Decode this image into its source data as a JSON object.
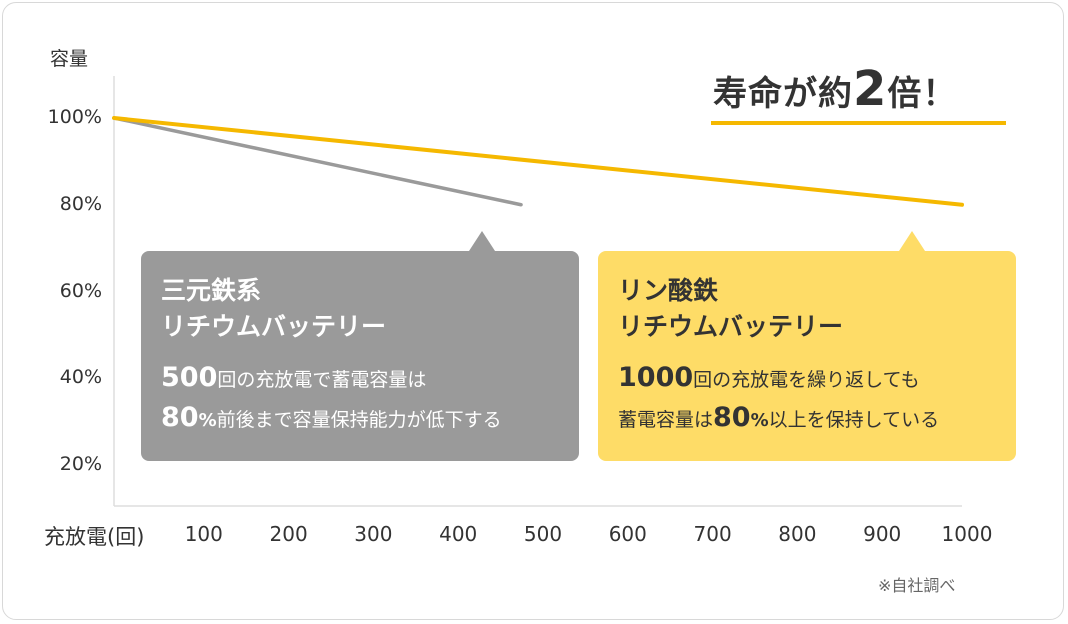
{
  "chart_data": {
    "type": "line",
    "y_axis_title": "容量",
    "x_axis_title": "充放電(回)",
    "x_ticks": [
      "100",
      "200",
      "300",
      "400",
      "500",
      "600",
      "700",
      "800",
      "900",
      "1000"
    ],
    "y_ticks": [
      "100%",
      "80%",
      "60%",
      "40%",
      "20%"
    ],
    "ylim": [
      0,
      100
    ],
    "xlim": [
      0,
      1000
    ],
    "grid": false,
    "series": [
      {
        "name": "三元鉄系リチウムバッテリー",
        "color": "#9a9a9a",
        "x": [
          0,
          480
        ],
        "y": [
          100,
          80
        ]
      },
      {
        "name": "リン酸鉄リチウムバッテリー",
        "color": "#f5b800",
        "x": [
          0,
          1000
        ],
        "y": [
          100,
          80
        ]
      }
    ]
  },
  "headline": {
    "pre": "寿命が約",
    "big": "2",
    "post": "倍！"
  },
  "callouts": {
    "ncm": {
      "title1": "三元鉄系",
      "title2": "リチウムバッテリー",
      "count": "500",
      "line1_rest": "回の充放電で蓄電容量は",
      "pct_num": "80",
      "pct_sign": "%",
      "line2_rest": "前後まで容量保持能力が低下する"
    },
    "lfp": {
      "title1": "リン酸鉄",
      "title2": "リチウムバッテリー",
      "count": "1000",
      "line1_rest": "回の充放電を繰り返しても",
      "line2_pre": "蓄電容量は",
      "pct_num": "80",
      "pct_sign": "%",
      "line2_rest": "以上を保持している"
    }
  },
  "note": "※自社調べ",
  "colors": {
    "accent": "#f5b800",
    "callout_yellow": "#fedc67",
    "gray": "#9a9a9a"
  }
}
